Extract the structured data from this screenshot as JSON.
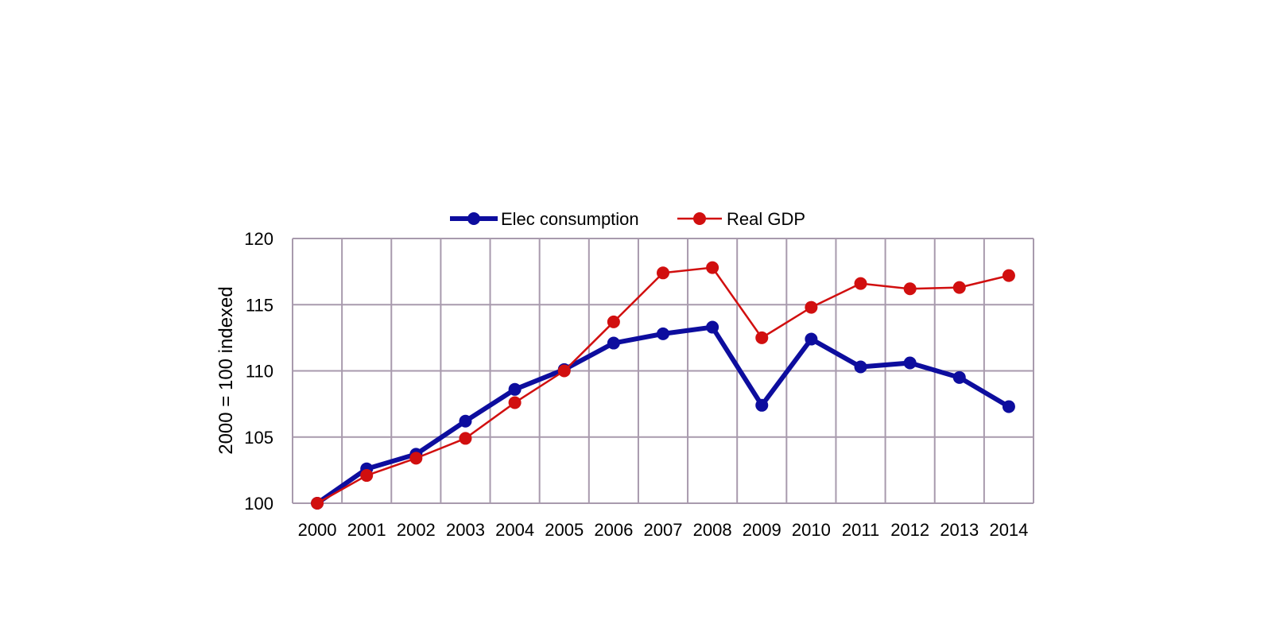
{
  "chart_data": {
    "type": "line",
    "title": "",
    "xlabel": "",
    "ylabel": "2000 = 100 indexed",
    "ylim": [
      100,
      120
    ],
    "yticks": [
      100,
      105,
      110,
      115,
      120
    ],
    "grid": true,
    "legend_position": "top-center",
    "categories": [
      "2000",
      "2001",
      "2002",
      "2003",
      "2004",
      "2005",
      "2006",
      "2007",
      "2008",
      "2009",
      "2010",
      "2011",
      "2012",
      "2013",
      "2014"
    ],
    "series": [
      {
        "name": "Elec consumption",
        "color": "#0d0d9e",
        "values": [
          100,
          102.6,
          103.7,
          106.2,
          108.6,
          110.1,
          112.1,
          112.8,
          113.3,
          107.4,
          112.4,
          110.3,
          110.6,
          109.5,
          107.3
        ]
      },
      {
        "name": "Real GDP",
        "color": "#d10f0f",
        "values": [
          100,
          102.1,
          103.4,
          104.9,
          107.6,
          110.0,
          113.7,
          117.4,
          117.8,
          112.5,
          114.8,
          116.6,
          116.2,
          116.3,
          117.2
        ]
      }
    ],
    "grid_color": "#a89aad"
  }
}
